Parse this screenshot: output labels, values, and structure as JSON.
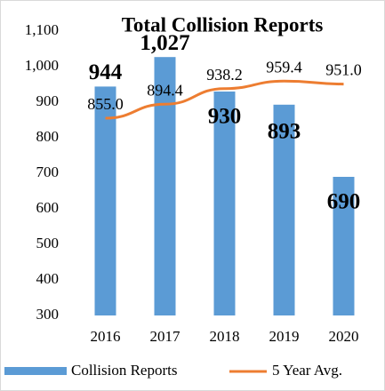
{
  "chart_data": {
    "type": "bar+line",
    "title": "Total Collision Reports",
    "categories": [
      "2016",
      "2017",
      "2018",
      "2019",
      "2020"
    ],
    "series": [
      {
        "name": "Collision Reports",
        "type": "bar",
        "color": "#5b9bd5",
        "values": [
          944,
          1027,
          930,
          893,
          690
        ],
        "value_labels": [
          "944",
          "1,027",
          "930",
          "893",
          "690"
        ]
      },
      {
        "name": "5 Year Avg.",
        "type": "line",
        "color": "#ed7d31",
        "values": [
          855.0,
          894.4,
          938.2,
          959.4,
          951.0
        ],
        "value_labels": [
          "855.0",
          "894.4",
          "938.2",
          "959.4",
          "951.0"
        ]
      }
    ],
    "ylim": [
      300,
      1100
    ],
    "yticks": [
      300,
      400,
      500,
      600,
      700,
      800,
      900,
      {
        "value": 1000,
        "label": "1,000"
      },
      {
        "value": 1100,
        "label": "1,100"
      }
    ],
    "legend": "bottom"
  }
}
